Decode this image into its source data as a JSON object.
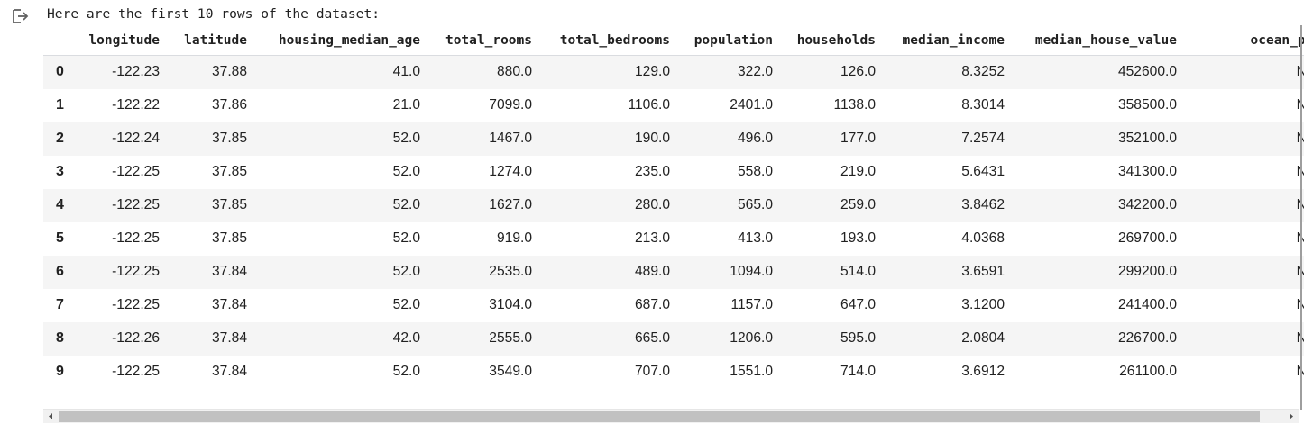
{
  "output": {
    "icon": "output-redirect-icon",
    "stdout_text": "Here are the first 10 rows of the dataset:"
  },
  "table": {
    "columns": [
      "",
      "longitude",
      "latitude",
      "housing_median_age",
      "total_rooms",
      "total_bedrooms",
      "population",
      "households",
      "median_income",
      "median_house_value",
      "ocean_proximi"
    ],
    "rows": [
      [
        "0",
        "-122.23",
        "37.88",
        "41.0",
        "880.0",
        "129.0",
        "322.0",
        "126.0",
        "8.3252",
        "452600.0",
        "NEAR B."
      ],
      [
        "1",
        "-122.22",
        "37.86",
        "21.0",
        "7099.0",
        "1106.0",
        "2401.0",
        "1138.0",
        "8.3014",
        "358500.0",
        "NEAR B."
      ],
      [
        "2",
        "-122.24",
        "37.85",
        "52.0",
        "1467.0",
        "190.0",
        "496.0",
        "177.0",
        "7.2574",
        "352100.0",
        "NEAR B."
      ],
      [
        "3",
        "-122.25",
        "37.85",
        "52.0",
        "1274.0",
        "235.0",
        "558.0",
        "219.0",
        "5.6431",
        "341300.0",
        "NEAR B."
      ],
      [
        "4",
        "-122.25",
        "37.85",
        "52.0",
        "1627.0",
        "280.0",
        "565.0",
        "259.0",
        "3.8462",
        "342200.0",
        "NEAR B."
      ],
      [
        "5",
        "-122.25",
        "37.85",
        "52.0",
        "919.0",
        "213.0",
        "413.0",
        "193.0",
        "4.0368",
        "269700.0",
        "NEAR B."
      ],
      [
        "6",
        "-122.25",
        "37.84",
        "52.0",
        "2535.0",
        "489.0",
        "1094.0",
        "514.0",
        "3.6591",
        "299200.0",
        "NEAR B."
      ],
      [
        "7",
        "-122.25",
        "37.84",
        "52.0",
        "3104.0",
        "687.0",
        "1157.0",
        "647.0",
        "3.1200",
        "241400.0",
        "NEAR B."
      ],
      [
        "8",
        "-122.26",
        "37.84",
        "42.0",
        "2555.0",
        "665.0",
        "1206.0",
        "595.0",
        "2.0804",
        "226700.0",
        "NEAR B."
      ],
      [
        "9",
        "-122.25",
        "37.84",
        "52.0",
        "3549.0",
        "707.0",
        "1551.0",
        "714.0",
        "3.6912",
        "261100.0",
        "NEAR B."
      ]
    ]
  },
  "scrollbar": {
    "left_icon": "scroll-left-arrow-icon",
    "right_icon": "scroll-right-arrow-icon"
  },
  "colors": {
    "stripe": "#f5f5f5",
    "text": "#212121",
    "scroll_thumb": "#c1c1c1"
  }
}
